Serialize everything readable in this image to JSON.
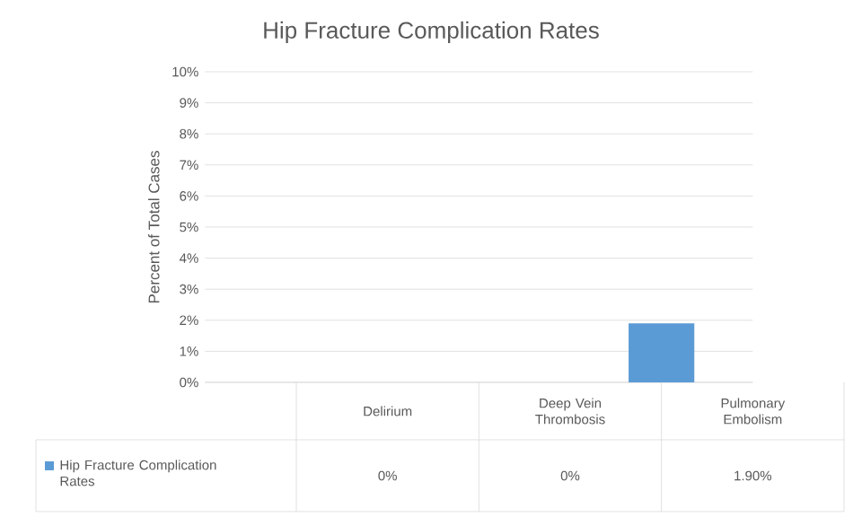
{
  "chart_data": {
    "type": "bar",
    "title": "Hip Fracture Complication Rates",
    "ylabel": "Percent of Total Cases",
    "categories": [
      "Delirium",
      "Deep Vein Thrombosis",
      "Pulmonary Embolism"
    ],
    "series": [
      {
        "name": "Hip Fracture Complication Rates",
        "color": "#5b9bd5",
        "values": [
          0,
          0,
          1.9
        ],
        "value_labels": [
          "0%",
          "0%",
          "1.90%"
        ]
      }
    ],
    "ylim": [
      0,
      10
    ],
    "yticks": [
      {
        "value": 0,
        "label": "0%"
      },
      {
        "value": 1,
        "label": "1%"
      },
      {
        "value": 2,
        "label": "2%"
      },
      {
        "value": 3,
        "label": "3%"
      },
      {
        "value": 4,
        "label": "4%"
      },
      {
        "value": 5,
        "label": "5%"
      },
      {
        "value": 6,
        "label": "6%"
      },
      {
        "value": 7,
        "label": "7%"
      },
      {
        "value": 8,
        "label": "8%"
      },
      {
        "value": 9,
        "label": "9%"
      },
      {
        "value": 10,
        "label": "10%"
      }
    ],
    "grid": "y",
    "legend": "bottom"
  }
}
